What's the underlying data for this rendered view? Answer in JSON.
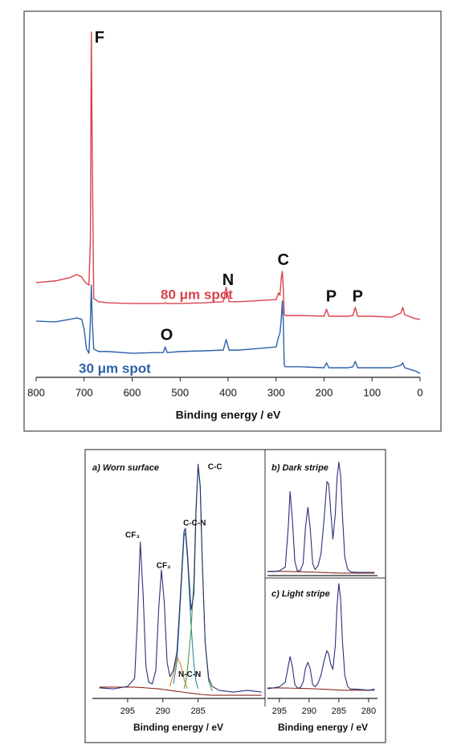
{
  "chart_data": [
    {
      "type": "line",
      "xlabel": "Binding energy / eV",
      "xlim": [
        800,
        0
      ],
      "ylim": [
        0,
        100
      ],
      "xticks": [
        800,
        700,
        600,
        500,
        400,
        300,
        200,
        100,
        0
      ],
      "x": [
        800,
        760,
        730,
        715,
        705,
        700,
        695,
        690,
        687,
        685,
        683,
        680,
        670,
        650,
        600,
        550,
        535,
        531,
        527,
        500,
        450,
        410,
        404,
        398,
        380,
        350,
        300,
        295,
        292,
        289,
        287,
        285,
        283,
        281,
        250,
        200,
        195,
        190,
        150,
        140,
        135,
        130,
        100,
        60,
        40,
        36,
        32,
        10,
        0
      ],
      "series": [
        {
          "name": "80 μm spot",
          "color": "#d9434c",
          "values": [
            26.8,
            27.3,
            28.2,
            29.1,
            28.4,
            27.3,
            26.6,
            26.1,
            38.6,
            97.7,
            61.4,
            22.3,
            21.4,
            21.1,
            20.9,
            20.9,
            20.9,
            21.1,
            20.9,
            20.9,
            21.1,
            21.4,
            25.5,
            21.4,
            21.4,
            21.6,
            22,
            23.9,
            23.2,
            28.4,
            30,
            25,
            17.7,
            17.5,
            17.5,
            17.3,
            19.3,
            17.3,
            17.3,
            17.5,
            19.8,
            17.3,
            17.3,
            17,
            18.2,
            19.8,
            17.7,
            16.6,
            16.4
          ]
        },
        {
          "name": "30 μm spot",
          "color": "#2b62a8",
          "values": [
            15.9,
            15.7,
            16.4,
            16.8,
            16.4,
            13.6,
            8,
            6.8,
            15.9,
            26.1,
            15.9,
            8,
            7.3,
            7.3,
            6.8,
            7,
            7,
            8.6,
            7,
            7.3,
            7.5,
            7.7,
            10.7,
            7.7,
            7.7,
            8,
            8.6,
            11.4,
            12.5,
            17,
            21.6,
            15.9,
            3.4,
            3,
            3,
            2.7,
            4.1,
            2.7,
            2.7,
            3,
            4.5,
            2.7,
            2.7,
            2.7,
            3.4,
            4.1,
            2.7,
            1.8,
            1.1
          ]
        }
      ],
      "annotations": [
        {
          "text": "F",
          "x": 668,
          "y": 96
        },
        {
          "text": "N",
          "x": 400,
          "y": 27.3
        },
        {
          "text": "C",
          "x": 285,
          "y": 33
        },
        {
          "text": "P",
          "x": 185,
          "y": 22.7
        },
        {
          "text": "P",
          "x": 130,
          "y": 22.7
        },
        {
          "text": "O",
          "x": 528,
          "y": 11.8
        }
      ]
    },
    {
      "type": "line",
      "title": "a) Worn surface",
      "xlabel": "Binding energy / eV",
      "xlim": [
        300,
        275.5
      ],
      "ylim": [
        0,
        100
      ],
      "xticks": [
        295,
        290,
        285
      ],
      "x": [
        299,
        297,
        295,
        294,
        293.6,
        293.2,
        292.8,
        292.4,
        292,
        291.5,
        291,
        290.6,
        290.2,
        289.8,
        289.4,
        289,
        288.5,
        288,
        287.5,
        287,
        286.8,
        286.5,
        286,
        285.6,
        285.3,
        285,
        284.7,
        284.4,
        284,
        283.5,
        283,
        282,
        280,
        278,
        276
      ],
      "series": [
        {
          "color": "#8b2a1e",
          "values": [
            4.6,
            4.6,
            4.6,
            4.6,
            4.5,
            4.5,
            4.4,
            4.3,
            4.2,
            4.1,
            4,
            3.9,
            3.8,
            3.6,
            3.5,
            3.3,
            3.1,
            2.9,
            2.7,
            2.5,
            2.4,
            2.3,
            2.1,
            2,
            1.9,
            1.8,
            1.7,
            1.6,
            1.5,
            1.4,
            1.3,
            1.3,
            1.3,
            1.3,
            1.3
          ]
        },
        {
          "color": "#e07b2a",
          "values": [
            null,
            null,
            null,
            null,
            null,
            null,
            null,
            null,
            null,
            null,
            null,
            null,
            null,
            null,
            null,
            5,
            10,
            17,
            14,
            8,
            6,
            4,
            null,
            null,
            null,
            null,
            null,
            null,
            null,
            null,
            null,
            null,
            null,
            null,
            null
          ]
        },
        {
          "color": "#2a8a9a",
          "values": [
            null,
            null,
            null,
            null,
            null,
            null,
            null,
            null,
            null,
            null,
            null,
            null,
            null,
            null,
            null,
            null,
            6,
            15,
            40,
            66,
            68,
            57,
            30,
            14,
            7,
            4,
            null,
            null,
            null,
            null,
            null,
            null,
            null,
            null,
            null
          ]
        },
        {
          "color": "#4aa04a",
          "values": [
            null,
            null,
            null,
            null,
            null,
            null,
            null,
            null,
            null,
            null,
            null,
            null,
            null,
            null,
            null,
            null,
            null,
            null,
            null,
            4,
            6,
            12,
            28,
            48,
            78,
            95,
            86,
            55,
            23,
            7,
            3,
            null,
            null,
            null,
            null
          ]
        },
        {
          "color": "#2a2f7a",
          "values": [
            4.3,
            3.9,
            4.9,
            8.2,
            32.8,
            63.9,
            42.6,
            13.1,
            6.6,
            5.9,
            11.5,
            36.1,
            52.5,
            39.3,
            14.8,
            8.9,
            11.5,
            19,
            42.6,
            68.2,
            69.5,
            59,
            36.1,
            42.6,
            75.4,
            95.7,
            86.9,
            55.7,
            23,
            8.2,
            4.9,
            3.3,
            2.6,
            3.3,
            2.6
          ]
        }
      ],
      "annotations": [
        {
          "text": "CF₃",
          "x": 294.3,
          "y": 66.6
        },
        {
          "text": "CF₂",
          "x": 289.9,
          "y": 54.1
        },
        {
          "text": "C-C-N",
          "x": 285.5,
          "y": 71.5
        },
        {
          "text": "C-C",
          "x": 282.6,
          "y": 94.4
        },
        {
          "text": "N-C-N",
          "x": 286.2,
          "y": 9.8
        }
      ]
    },
    {
      "type": "line",
      "title": "b) Dark stripe",
      "xlim": [
        297,
        278.5
      ],
      "ylim": [
        0,
        100
      ],
      "x": [
        297,
        296,
        295,
        294,
        293.5,
        293.2,
        292.8,
        292.4,
        292,
        291.5,
        291,
        290.6,
        290.2,
        289.8,
        289.4,
        289,
        288.5,
        288,
        287.5,
        287,
        286.7,
        286.4,
        286,
        285.6,
        285.3,
        285,
        284.7,
        284.4,
        284,
        283.5,
        283,
        282,
        280,
        279
      ],
      "series": [
        {
          "color": "#8b2a1e",
          "values": [
            3.5,
            3.5,
            3.5,
            3.4,
            3.4,
            3.3,
            3.3,
            3.2,
            3.2,
            3.1,
            3.1,
            3,
            3,
            2.9,
            2.9,
            2.8,
            2.7,
            2.6,
            2.5,
            2.4,
            2.3,
            2.3,
            2.2,
            2.2,
            2.1,
            2.1,
            2,
            2,
            2,
            2,
            2,
            2,
            2,
            2
          ]
        },
        {
          "color": "#2a2f7a",
          "values": [
            3.3,
            3.3,
            3.9,
            7,
            40,
            69,
            45,
            12,
            4,
            4,
            10,
            40,
            56,
            38,
            10,
            5,
            8,
            18,
            45,
            77,
            75,
            55,
            30,
            50,
            80,
            93,
            82,
            50,
            15,
            5,
            3,
            2.6,
            2.6,
            2.6
          ]
        }
      ]
    },
    {
      "type": "line",
      "title": "c) Light stripe",
      "xlabel": "Binding energy / eV",
      "xlim": [
        297,
        278.5
      ],
      "ylim": [
        0,
        100
      ],
      "xticks": [
        295,
        290,
        285,
        280
      ],
      "x": [
        297,
        296,
        295,
        294,
        293.5,
        293.2,
        292.8,
        292.4,
        292,
        291.5,
        291,
        290.6,
        290.2,
        289.8,
        289.4,
        289,
        288.5,
        288,
        287.5,
        287,
        286.7,
        286.4,
        286,
        285.6,
        285.3,
        285,
        284.7,
        284.4,
        284,
        283.5,
        283,
        282,
        280,
        279
      ],
      "series": [
        {
          "color": "#8b2a1e",
          "values": [
            9,
            9,
            9,
            8.9,
            8.9,
            8.8,
            8.8,
            8.7,
            8.7,
            8.6,
            8.6,
            8.5,
            8.5,
            8.4,
            8.3,
            8.2,
            8.1,
            8,
            7.9,
            7.8,
            7.7,
            7.6,
            7.5,
            7.4,
            7.3,
            7.2,
            7.1,
            7,
            7,
            7,
            7,
            7,
            7,
            7
          ]
        },
        {
          "color": "#2a2f7a",
          "values": [
            8.3,
            9,
            10,
            14,
            28,
            35.9,
            27,
            12,
            9,
            9,
            14,
            26,
            31,
            25,
            12,
            10,
            13,
            20,
            32,
            41,
            38,
            30,
            25,
            45,
            80,
            98.6,
            85,
            50,
            20,
            10,
            8,
            8,
            7,
            8
          ]
        }
      ]
    }
  ]
}
